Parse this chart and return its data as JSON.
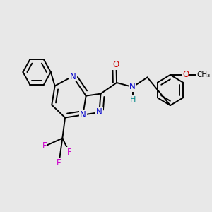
{
  "bg_color": "#e8e8e8",
  "bond_color": "#000000",
  "bond_width": 1.4,
  "dbo": 0.018,
  "font_size": 8.5,
  "colors": {
    "N": "#0000cc",
    "O": "#cc0000",
    "F": "#cc00cc",
    "H": "#008888",
    "C": "#000000"
  },
  "xlim": [
    0.0,
    1.0
  ],
  "ylim": [
    0.0,
    1.0
  ]
}
